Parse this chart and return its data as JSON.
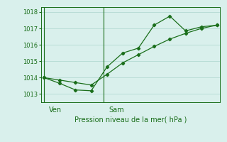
{
  "line1_x": [
    0,
    1,
    2,
    3,
    4,
    5,
    6,
    7,
    8,
    9,
    10,
    11
  ],
  "line1_y": [
    1014.0,
    1013.65,
    1013.25,
    1013.2,
    1014.65,
    1015.5,
    1015.8,
    1017.2,
    1017.75,
    1016.85,
    1017.1,
    1017.2
  ],
  "line2_x": [
    0,
    1,
    2,
    3,
    4,
    5,
    6,
    7,
    8,
    9,
    10,
    11
  ],
  "line2_y": [
    1014.0,
    1013.85,
    1013.7,
    1013.55,
    1014.2,
    1014.9,
    1015.4,
    1015.9,
    1016.35,
    1016.7,
    1017.0,
    1017.2
  ],
  "line_color": "#1a6e1a",
  "bg_color": "#d9f0ec",
  "grid_color": "#b8ddd6",
  "xlabel": "Pression niveau de la mer( hPa )",
  "yticks": [
    1013,
    1014,
    1015,
    1016,
    1017,
    1018
  ],
  "ylim": [
    1012.5,
    1018.3
  ],
  "xlim": [
    -0.2,
    11.2
  ],
  "ven_x": 0,
  "sam_x": 3.8,
  "ven_label": "Ven",
  "sam_label": "Sam",
  "xlabel_fontsize": 7,
  "tick_fontsize": 6
}
